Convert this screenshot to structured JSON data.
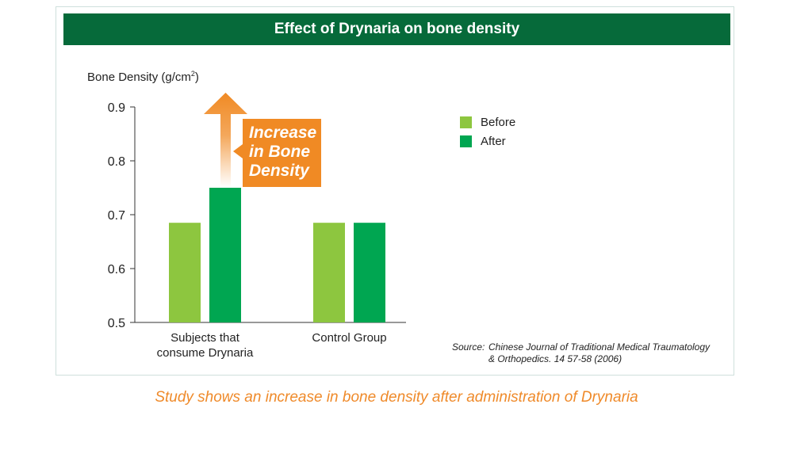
{
  "chart_data": {
    "type": "bar",
    "title": "Effect of Drynaria on bone density",
    "ylabel_text": "Bone Density (g/cm",
    "ylabel_sup": "2",
    "ylabel_close": ")",
    "ylim": [
      0.5,
      0.9
    ],
    "yticks": [
      "0.9",
      "0.8",
      "0.7",
      "0.6",
      "0.5"
    ],
    "categories": [
      {
        "line1": "Subjects that",
        "line2": "consume Drynaria"
      },
      {
        "line1": "Control Group",
        "line2": ""
      }
    ],
    "series": [
      {
        "name": "Before",
        "color": "#8dc63f",
        "values": [
          0.685,
          0.685
        ]
      },
      {
        "name": "After",
        "color": "#00a651",
        "values": [
          0.75,
          0.685
        ]
      }
    ],
    "legend_position": "right",
    "annotation": {
      "lines": [
        "Increase",
        "in Bone",
        "Density"
      ],
      "color": "#f08a24"
    }
  },
  "source": {
    "label": "Source:",
    "line1": "Chinese Journal of Traditional Medical Traumatology",
    "line2": "& Orthopedics. 14 57-58 (2006)"
  },
  "caption": "Study shows an increase in bone density after administration of Drynaria",
  "colors": {
    "title_bar": "#066a3a",
    "accent_orange": "#f08a24"
  }
}
